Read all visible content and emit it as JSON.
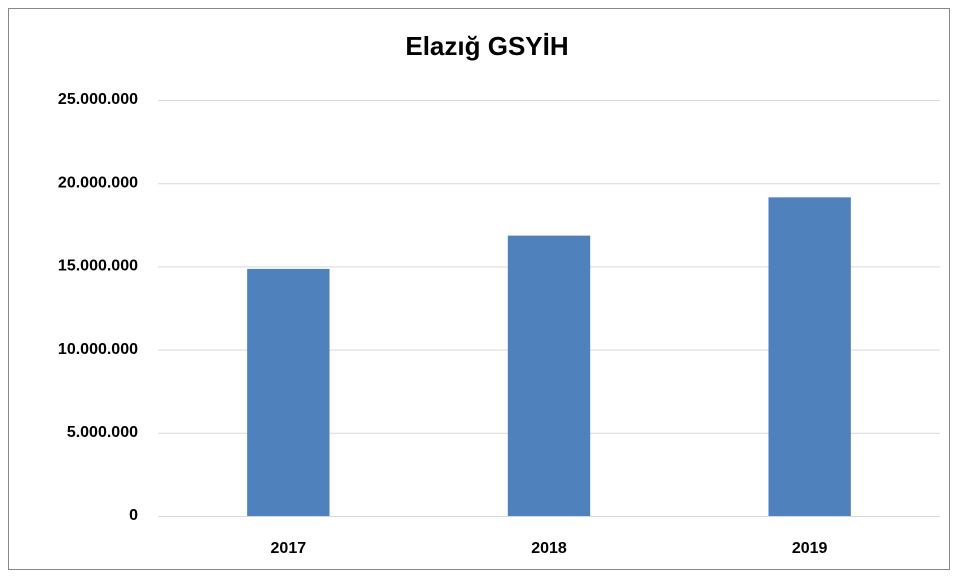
{
  "chart_data": {
    "type": "bar",
    "title": "Elazığ GSYİH",
    "categories": [
      "2017",
      "2018",
      "2019"
    ],
    "values": [
      14850000,
      16850000,
      19150000
    ],
    "color": "#4f81bd",
    "ylim": [
      0,
      25000000
    ],
    "yticks": [
      0,
      {
        "value": 5000000,
        "label": "5.000.000"
      },
      {
        "value": 10000000,
        "label": "10.000.000"
      },
      {
        "value": 15000000,
        "label": "15.000.000"
      },
      {
        "value": 20000000,
        "label": "20.000.000"
      },
      {
        "value": 25000000,
        "label": "25.000.000"
      }
    ],
    "grid": true
  }
}
